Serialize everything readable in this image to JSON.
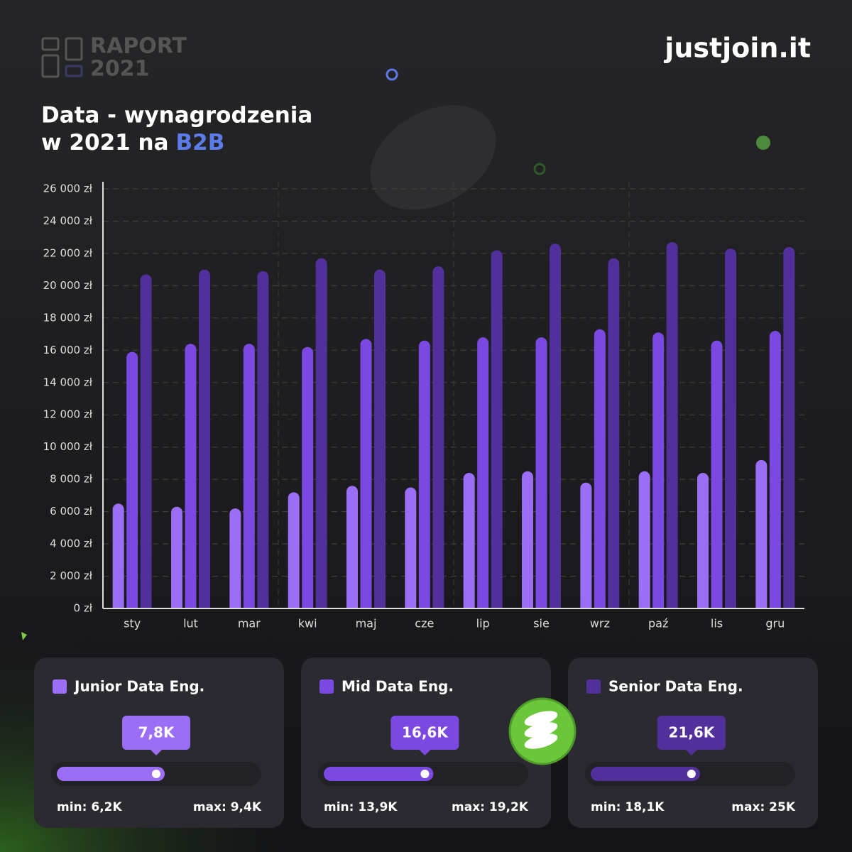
{
  "header": {
    "report": "RAPORT",
    "year": "2021",
    "brand": "justjoin.it"
  },
  "chart_data": {
    "type": "bar",
    "title": "Data - wynagrodzenia",
    "subtitle": "w 2021 na",
    "subtitle_highlight": "B2B",
    "categories": [
      "sty",
      "lut",
      "mar",
      "kwi",
      "maj",
      "cze",
      "lip",
      "sie",
      "wrz",
      "paź",
      "lis",
      "gru"
    ],
    "series": [
      {
        "name": "Junior Data Eng.",
        "color": "#9c6ef6",
        "values": [
          6500,
          6300,
          6200,
          7200,
          7600,
          7500,
          8400,
          8500,
          7800,
          8500,
          8400,
          9200
        ],
        "average": {
          "value": 7800,
          "label": "7,8K"
        },
        "min": {
          "value": 6200,
          "label": "min: 6,2K"
        },
        "max": {
          "value": 9400,
          "label": "max: 9,4K"
        }
      },
      {
        "name": "Mid Data Eng.",
        "color": "#7b48e2",
        "values": [
          15900,
          16400,
          16400,
          16200,
          16700,
          16600,
          16800,
          16800,
          17300,
          17100,
          16600,
          17200
        ],
        "average": {
          "value": 16600,
          "label": "16,6K"
        },
        "min": {
          "value": 13900,
          "label": "min: 13,9K"
        },
        "max": {
          "value": 19200,
          "label": "max: 19,2K"
        }
      },
      {
        "name": "Senior Data Eng.",
        "color": "#52309b",
        "values": [
          20700,
          21000,
          20900,
          21700,
          21000,
          21200,
          22200,
          22600,
          21700,
          22700,
          22300,
          22400
        ],
        "average": {
          "value": 21600,
          "label": "21,6K"
        },
        "min": {
          "value": 18100,
          "label": "min: 18,1K"
        },
        "max": {
          "value": 25000,
          "label": "max: 25K"
        }
      }
    ],
    "ylim": [
      0,
      26000
    ],
    "yticks": [
      {
        "value": 0,
        "label": "0 zł"
      },
      {
        "value": 2000,
        "label": "2 000 zł"
      },
      {
        "value": 4000,
        "label": "4 000 zł"
      },
      {
        "value": 6000,
        "label": "6 000 zł"
      },
      {
        "value": 8000,
        "label": "8 000 zł"
      },
      {
        "value": 10000,
        "label": "10 000 zł"
      },
      {
        "value": 12000,
        "label": "12 000 zł"
      },
      {
        "value": 14000,
        "label": "14 000 zł"
      },
      {
        "value": 16000,
        "label": "16 000 zł"
      },
      {
        "value": 18000,
        "label": "18 000 zł"
      },
      {
        "value": 20000,
        "label": "20 000 zł"
      },
      {
        "value": 22000,
        "label": "22 000 zł"
      },
      {
        "value": 24000,
        "label": "24 000 zł"
      },
      {
        "value": 26000,
        "label": "26 000 zł"
      }
    ],
    "grid": true
  }
}
